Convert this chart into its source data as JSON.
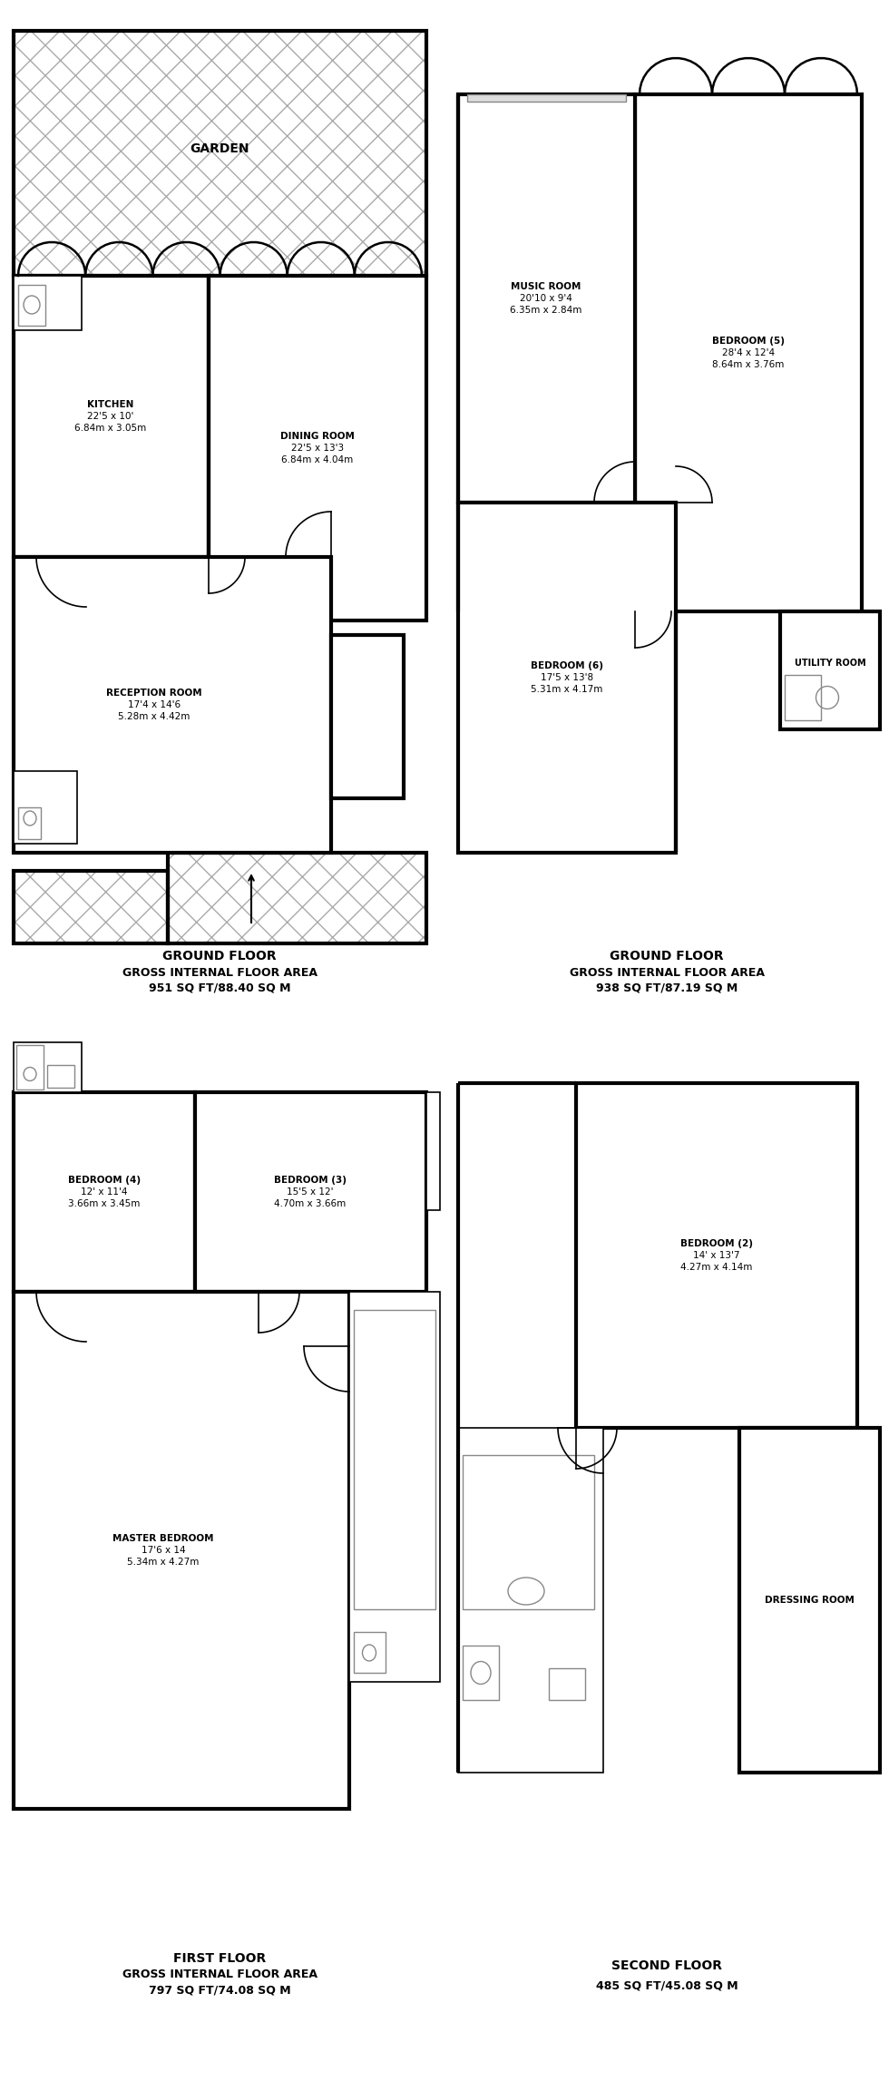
{
  "bg": "#ffffff",
  "black": "#000000",
  "gray": "#888888",
  "lw_wall": 3.0,
  "lw_thin": 1.2,
  "lw_fixture": 1.0,
  "hatch_color": "#aaaaaa",
  "sections": {
    "GFL": {
      "label": "GROUND FLOOR",
      "sublabel": "GROSS INTERNAL FLOOR AREA",
      "area": "951 SQ FT/88.40 SQ M"
    },
    "FFL": {
      "label": "FIRST FLOOR",
      "sublabel": "GROSS INTERNAL FLOOR AREA",
      "area": "797 SQ FT/74.08 SQ M"
    },
    "RGF": {
      "label": "GROUND FLOOR",
      "sublabel": "GROSS INTERNAL FLOOR AREA",
      "area": "938 SQ FT/87.19 SQ M"
    },
    "RSF": {
      "label": "SECOND FLOOR",
      "sublabel": "485 SQ FT/45.08 SQ M",
      "area": ""
    }
  }
}
